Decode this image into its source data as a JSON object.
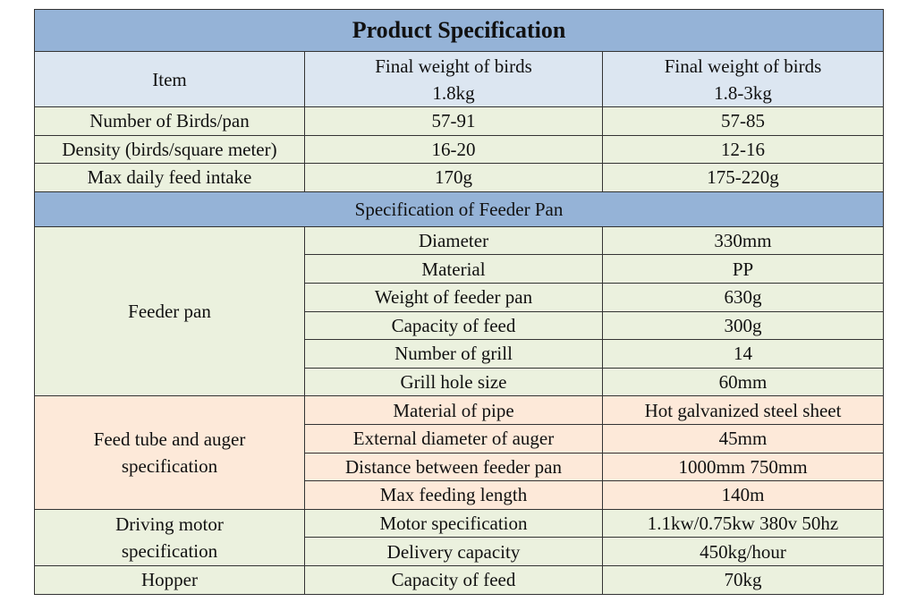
{
  "title": "Product Specification",
  "header": {
    "item": "Item",
    "col1_line1": "Final weight of birds",
    "col1_line2": "1.8kg",
    "col2_line1": "Final weight of birds",
    "col2_line2": "1.8-3kg"
  },
  "general_rows": [
    {
      "label": "Number of Birds/pan",
      "v1": "57-91",
      "v2": "57-85"
    },
    {
      "label": "Density (birds/square meter)",
      "v1": "16-20",
      "v2": "12-16"
    },
    {
      "label": "Max daily feed intake",
      "v1": "170g",
      "v2": "175-220g"
    }
  ],
  "subtitle": "Specification of Feeder Pan",
  "feeder_pan": {
    "group": "Feeder pan",
    "rows": [
      {
        "label": "Diameter",
        "value": "330mm"
      },
      {
        "label": "Material",
        "value": "PP"
      },
      {
        "label": "Weight of feeder pan",
        "value": "630g"
      },
      {
        "label": "Capacity of feed",
        "value": "300g"
      },
      {
        "label": "Number of grill",
        "value": "14"
      },
      {
        "label": "Grill hole size",
        "value": "60mm"
      }
    ]
  },
  "feed_tube": {
    "group_line1": "Feed tube and auger",
    "group_line2": "specification",
    "rows": [
      {
        "label": "Material of pipe",
        "value": "Hot galvanized steel sheet"
      },
      {
        "label": "External diameter of auger",
        "value": "45mm"
      },
      {
        "label": "Distance between feeder pan",
        "value": "1000mm 750mm"
      },
      {
        "label": "Max feeding length",
        "value": "140m"
      }
    ]
  },
  "motor": {
    "group_line1": "Driving motor",
    "group_line2": "specification",
    "rows": [
      {
        "label": "Motor specification",
        "value": "1.1kw/0.75kw 380v 50hz"
      },
      {
        "label": "Delivery capacity",
        "value": "450kg/hour"
      }
    ]
  },
  "hopper": {
    "group": "Hopper",
    "rows": [
      {
        "label": "Capacity of feed",
        "value": "70kg"
      }
    ]
  },
  "colors": {
    "title_bg": "#95b3d7",
    "header_bg": "#dce6f1",
    "green_bg": "#ebf1de",
    "pink_bg": "#fde9d9"
  }
}
